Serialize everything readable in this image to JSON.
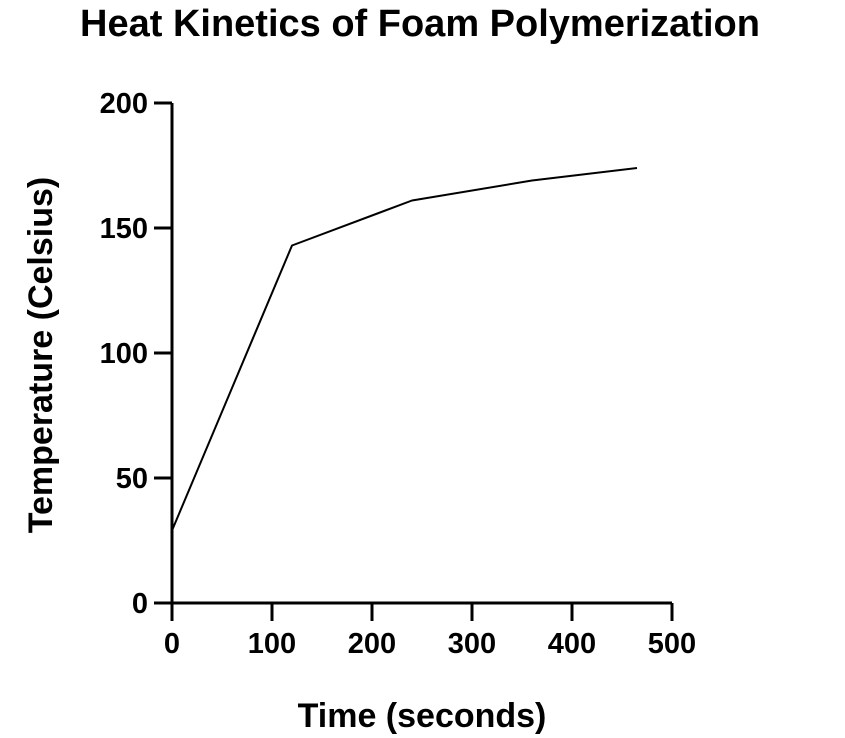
{
  "chart_data": {
    "type": "line",
    "title": "Heat Kinetics of Foam Polymerization",
    "xlabel": "Time (seconds)",
    "ylabel": "Temperature (Celsius)",
    "xlim": [
      0,
      500
    ],
    "ylim": [
      0,
      200
    ],
    "xticks": [
      0,
      100,
      200,
      300,
      400,
      500
    ],
    "yticks": [
      0,
      50,
      100,
      150,
      200
    ],
    "grid": false,
    "series": [
      {
        "x": [
          0,
          120,
          240,
          360,
          465
        ],
        "y": [
          29,
          143,
          161,
          169,
          174
        ]
      }
    ]
  }
}
